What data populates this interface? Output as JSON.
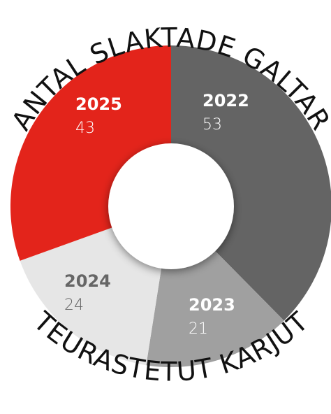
{
  "chart_data": {
    "type": "donut",
    "title": "ANTAL SLAKTADE GALTAR",
    "subtitle": "TEURASTETUT KARJUT",
    "categories": [
      "2022",
      "2023",
      "2024",
      "2025"
    ],
    "values": [
      53,
      21,
      24,
      43
    ],
    "colors": [
      "#646464",
      "#a0a0a0",
      "#e6e6e6",
      "#e3241b"
    ]
  }
}
